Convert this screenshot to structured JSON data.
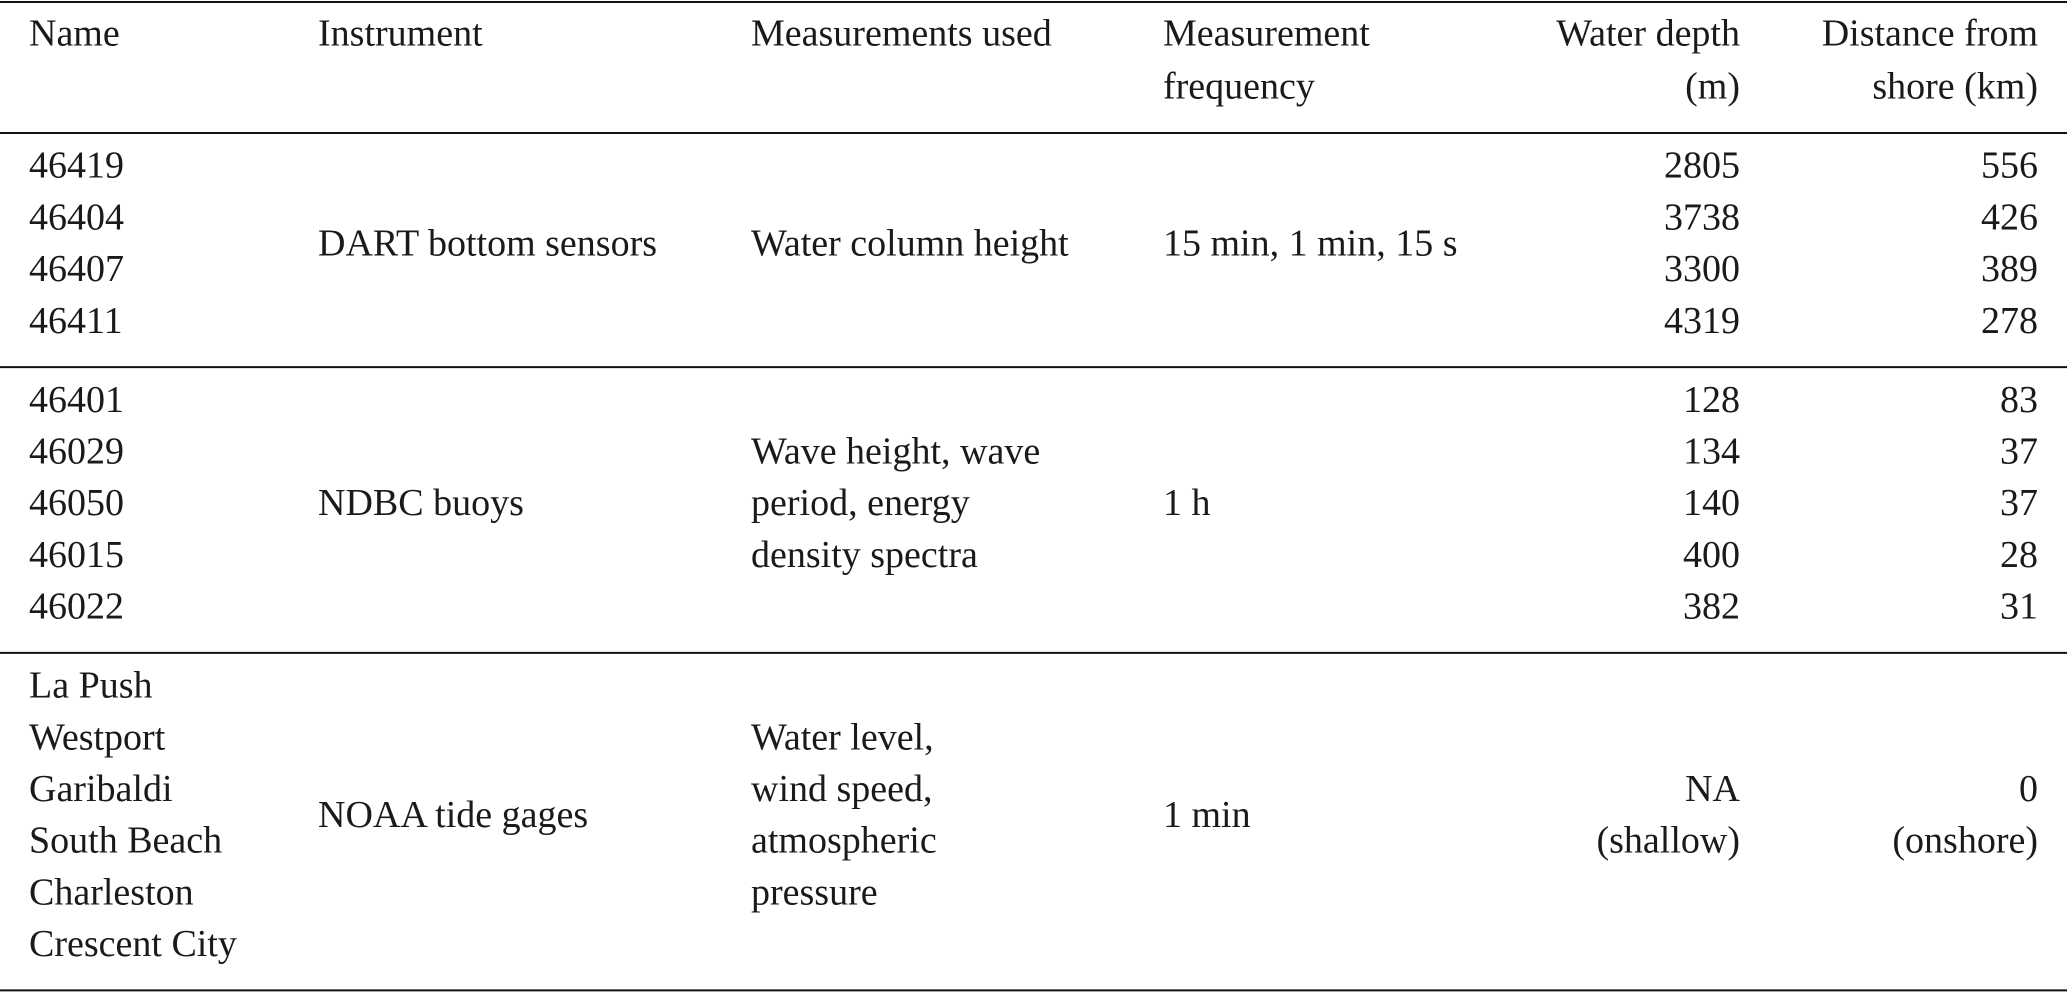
{
  "table": {
    "header": [
      [
        "Name"
      ],
      [
        "Instrument"
      ],
      [
        "Measurements used"
      ],
      [
        "Measurement",
        "frequency"
      ],
      [
        "Water depth",
        "(m)"
      ],
      [
        "Distance from",
        "shore (km)"
      ]
    ],
    "groups": [
      {
        "names": [
          "46419",
          "46404",
          "46407",
          "46411"
        ],
        "instrument": [
          "DART bottom sensors"
        ],
        "measurements": [
          "Water column height"
        ],
        "frequency": [
          "15 min, 1 min, 15 s"
        ],
        "water_depth": [
          2805,
          3738,
          3300,
          4319
        ],
        "distance": [
          556,
          426,
          389,
          278
        ]
      },
      {
        "names": [
          "46401",
          "46029",
          "46050",
          "46015",
          "46022"
        ],
        "instrument": [
          "NDBC buoys"
        ],
        "measurements": [
          "Wave height, wave",
          "period, energy",
          "density spectra"
        ],
        "frequency": [
          "1 h"
        ],
        "water_depth": [
          128,
          134,
          140,
          400,
          382
        ],
        "distance": [
          83,
          37,
          37,
          28,
          31
        ]
      },
      {
        "names": [
          "La Push",
          "Westport",
          "Garibaldi",
          "South Beach",
          "Charleston",
          "Crescent City"
        ],
        "instrument": [
          "NOAA tide gages"
        ],
        "measurements": [
          "Water level,",
          "wind speed,",
          "atmospheric",
          "pressure"
        ],
        "frequency": [
          "1 min"
        ],
        "water_depth": [
          "NA",
          "(shallow)"
        ],
        "distance": [
          "0",
          "(onshore)"
        ]
      }
    ]
  }
}
